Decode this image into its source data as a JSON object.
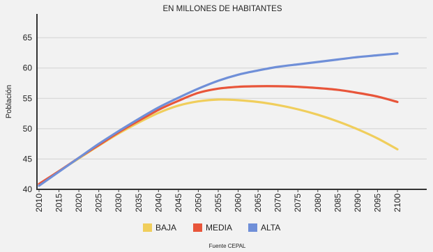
{
  "chart_data": {
    "type": "line",
    "title": "EN MILLONES DE HABITANTES",
    "ylabel": "Población",
    "xlabel": "",
    "xlim": [
      2010,
      2100
    ],
    "ylim": [
      40,
      68
    ],
    "y_ticks": [
      40,
      45,
      50,
      55,
      60,
      65
    ],
    "x_ticks": [
      2010,
      2015,
      2020,
      2025,
      2030,
      2035,
      2040,
      2045,
      2050,
      2055,
      2060,
      2065,
      2070,
      2075,
      2080,
      2085,
      2090,
      2095,
      2100
    ],
    "grid": "horizontal",
    "legend_position": "bottom",
    "source": "Fuente CEPAL",
    "series": [
      {
        "name": "BAJA",
        "color": "#f0ce5c",
        "x": [
          2010,
          2015,
          2020,
          2025,
          2030,
          2035,
          2040,
          2045,
          2050,
          2055,
          2060,
          2065,
          2070,
          2075,
          2080,
          2085,
          2090,
          2095,
          2100
        ],
        "y": [
          40.8,
          43.0,
          45.1,
          47.2,
          49.2,
          51.0,
          52.6,
          53.8,
          54.5,
          54.8,
          54.7,
          54.4,
          53.9,
          53.2,
          52.3,
          51.2,
          49.9,
          48.4,
          46.6
        ]
      },
      {
        "name": "MEDIA",
        "color": "#e8553a",
        "x": [
          2010,
          2015,
          2020,
          2025,
          2030,
          2035,
          2040,
          2045,
          2050,
          2055,
          2060,
          2065,
          2070,
          2075,
          2080,
          2085,
          2090,
          2095,
          2100
        ],
        "y": [
          40.9,
          43.0,
          45.2,
          47.3,
          49.4,
          51.3,
          53.1,
          54.6,
          55.9,
          56.6,
          56.9,
          57.0,
          57.0,
          56.9,
          56.7,
          56.4,
          55.9,
          55.3,
          54.4
        ]
      },
      {
        "name": "ALTA",
        "color": "#6f8fd8",
        "x": [
          2010,
          2015,
          2020,
          2025,
          2030,
          2035,
          2040,
          2045,
          2050,
          2055,
          2060,
          2065,
          2070,
          2075,
          2080,
          2085,
          2090,
          2095,
          2100
        ],
        "y": [
          40.6,
          42.9,
          45.2,
          47.5,
          49.6,
          51.6,
          53.5,
          55.1,
          56.6,
          57.9,
          58.9,
          59.6,
          60.2,
          60.6,
          61.0,
          61.4,
          61.8,
          62.1,
          62.4
        ]
      }
    ]
  }
}
